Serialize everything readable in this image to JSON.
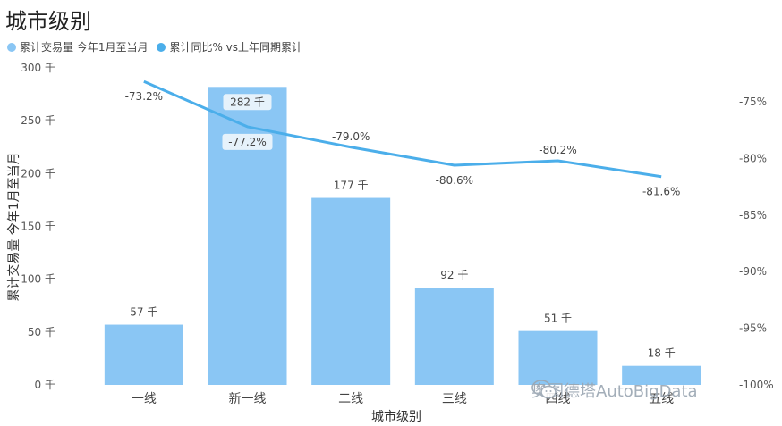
{
  "title": "城市级别",
  "legend": [
    {
      "label": "累计交易量 今年1月至当月",
      "color": "#8AC6F4"
    },
    {
      "label": "累计同比% vs上年同期累计",
      "color": "#4BAEEA"
    }
  ],
  "watermark": "奥图德塔AutoBigData",
  "chart_data": {
    "type": "bar+line",
    "xlabel": "城市级别",
    "ylabel": "累计交易量 今年1月至当月",
    "categories": [
      "一线",
      "新一线",
      "二线",
      "三线",
      "四线",
      "五线"
    ],
    "bar_series": {
      "name": "累计交易量 今年1月至当月",
      "values": [
        57,
        282,
        177,
        92,
        51,
        18
      ],
      "labels": [
        "57 千",
        "282 千",
        "177 千",
        "92 千",
        "51 千",
        "18 千"
      ],
      "color": "#8AC6F4"
    },
    "line_series": {
      "name": "累计同比% vs上年同期累计",
      "values": [
        -73.2,
        -77.2,
        -79.0,
        -80.6,
        -80.2,
        -81.6
      ],
      "labels": [
        "-73.2%",
        "-77.2%",
        "-79.0%",
        "-80.6%",
        "-80.2%",
        "-81.6%"
      ],
      "color": "#4BAEEA"
    },
    "y_left": {
      "min": 0,
      "max": 300,
      "ticks": [
        0,
        50,
        100,
        150,
        200,
        250,
        300
      ],
      "tick_labels": [
        "0 千",
        "50 千",
        "100 千",
        "150 千",
        "200 千",
        "250 千",
        "300 千"
      ]
    },
    "y_right": {
      "min": -100,
      "max": -72,
      "ticks": [
        -75,
        -80,
        -85,
        -90,
        -95,
        -100
      ],
      "tick_labels": [
        "-75%",
        "-80%",
        "-85%",
        "-90%",
        "-95%",
        "-100%"
      ]
    },
    "grid": false
  }
}
